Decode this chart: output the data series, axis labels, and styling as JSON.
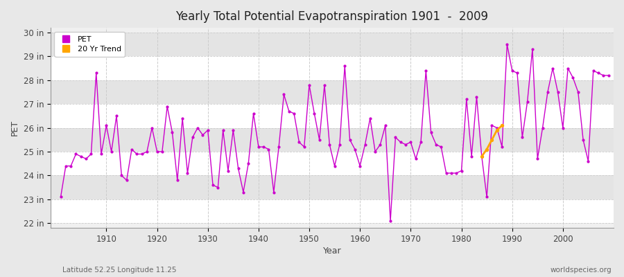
{
  "title": "Yearly Total Potential Evapotranspiration 1901  -  2009",
  "xlabel": "Year",
  "ylabel": "PET",
  "subtitle_left": "Latitude 52.25 Longitude 11.25",
  "subtitle_right": "worldspecies.org",
  "ylim": [
    21.8,
    30.2
  ],
  "ytick_labels": [
    "22 in",
    "23 in",
    "24 in",
    "25 in",
    "26 in",
    "27 in",
    "28 in",
    "29 in",
    "30 in"
  ],
  "ytick_values": [
    22,
    23,
    24,
    25,
    26,
    27,
    28,
    29,
    30
  ],
  "xlim": [
    1899,
    2010
  ],
  "line_color": "#CC00CC",
  "trend_color": "#FFA500",
  "bg_light": "#F5F5F5",
  "bg_dark": "#E8E8E8",
  "years": [
    1901,
    1902,
    1903,
    1904,
    1905,
    1906,
    1907,
    1908,
    1909,
    1910,
    1911,
    1912,
    1913,
    1914,
    1915,
    1916,
    1917,
    1918,
    1919,
    1920,
    1921,
    1922,
    1923,
    1924,
    1925,
    1926,
    1927,
    1928,
    1929,
    1930,
    1931,
    1932,
    1933,
    1934,
    1935,
    1936,
    1937,
    1938,
    1939,
    1940,
    1941,
    1942,
    1943,
    1944,
    1945,
    1946,
    1947,
    1948,
    1949,
    1950,
    1951,
    1952,
    1953,
    1954,
    1955,
    1956,
    1957,
    1958,
    1959,
    1960,
    1961,
    1962,
    1963,
    1964,
    1965,
    1966,
    1967,
    1968,
    1969,
    1970,
    1971,
    1972,
    1973,
    1974,
    1975,
    1976,
    1977,
    1978,
    1979,
    1980,
    1981,
    1982,
    1983,
    1984,
    1985,
    1986,
    1987,
    1988,
    1989,
    1990,
    1991,
    1992,
    1993,
    1994,
    1995,
    1996,
    1997,
    1998,
    1999,
    2000,
    2001,
    2002,
    2003,
    2004,
    2005,
    2006,
    2007,
    2008,
    2009
  ],
  "pet": [
    23.1,
    24.4,
    24.4,
    24.9,
    24.8,
    24.7,
    24.9,
    28.3,
    24.9,
    26.1,
    25.0,
    26.5,
    24.0,
    23.8,
    25.1,
    24.9,
    24.9,
    25.0,
    26.0,
    25.0,
    25.0,
    26.9,
    25.8,
    23.8,
    26.4,
    24.1,
    25.6,
    26.0,
    25.7,
    25.9,
    23.6,
    23.5,
    25.9,
    24.2,
    25.9,
    24.3,
    23.3,
    24.5,
    26.6,
    25.2,
    25.2,
    25.1,
    23.3,
    25.2,
    27.4,
    26.7,
    26.6,
    25.4,
    25.2,
    27.8,
    26.6,
    25.5,
    27.8,
    25.3,
    24.4,
    25.3,
    28.6,
    25.5,
    25.1,
    24.4,
    25.3,
    26.4,
    25.0,
    25.3,
    26.1,
    22.1,
    25.6,
    25.4,
    25.3,
    25.4,
    24.7,
    25.4,
    28.4,
    25.8,
    25.3,
    25.2,
    24.1,
    24.1,
    24.1,
    24.2,
    27.2,
    24.8,
    27.3,
    24.8,
    23.1,
    26.1,
    26.0,
    25.2,
    29.5,
    28.4,
    28.3,
    25.6,
    27.1,
    29.3,
    24.7,
    26.0,
    27.5,
    28.5,
    27.5,
    26.0,
    28.5,
    28.1,
    27.5,
    25.5,
    24.6,
    28.4,
    28.3,
    28.2,
    28.2
  ],
  "trend_years": [
    1984,
    1985,
    1986,
    1987,
    1988
  ],
  "trend_values": [
    24.8,
    25.1,
    25.5,
    25.9,
    26.1
  ],
  "xtick_values": [
    1910,
    1920,
    1930,
    1940,
    1950,
    1960,
    1970,
    1980,
    1990,
    2000
  ]
}
